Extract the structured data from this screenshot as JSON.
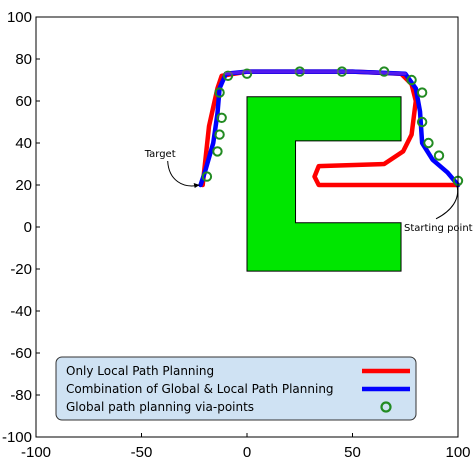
{
  "chart_data": {
    "type": "line",
    "title": "",
    "xlabel": "",
    "ylabel": "",
    "xlim": [
      -100,
      100
    ],
    "ylim": [
      -100,
      100
    ],
    "x_ticks": [
      -100,
      -50,
      0,
      50,
      100
    ],
    "y_ticks": [
      100,
      80,
      60,
      40,
      20,
      0,
      -20,
      -40,
      -60,
      -80,
      -100
    ],
    "grid": false,
    "legend_position": "bottom-left",
    "obstacle": {
      "color": "#00e600",
      "polygon": [
        [
          0,
          62
        ],
        [
          73,
          62
        ],
        [
          73,
          20
        ],
        [
          32,
          20
        ],
        [
          32,
          28
        ],
        [
          73,
          28
        ],
        [
          73,
          -21
        ],
        [
          0,
          -21
        ]
      ],
      "polygon_exact": [
        [
          0,
          62
        ],
        [
          73,
          62
        ],
        [
          73,
          41
        ],
        [
          23,
          41
        ],
        [
          23,
          2
        ],
        [
          73,
          2
        ],
        [
          73,
          -21
        ],
        [
          0,
          -21
        ]
      ]
    },
    "annotations": [
      {
        "text": "Target",
        "x": -21,
        "y": 20
      },
      {
        "text": "Starting point",
        "x": 100,
        "y": 22
      }
    ],
    "series": [
      {
        "name": "Only Local Path Planning",
        "color": "#ff0000",
        "points": [
          [
            100,
            20
          ],
          [
            34,
            20
          ],
          [
            32,
            24
          ],
          [
            34,
            29
          ],
          [
            65,
            30
          ],
          [
            74,
            36
          ],
          [
            78,
            44
          ],
          [
            80,
            60
          ],
          [
            78,
            68
          ],
          [
            73,
            73
          ],
          [
            50,
            74
          ],
          [
            0,
            74
          ],
          [
            -12,
            72
          ],
          [
            -14,
            66
          ],
          [
            -18,
            48
          ],
          [
            -21,
            20
          ]
        ]
      },
      {
        "name": "Combination of Global & Local Path Planning",
        "color": "#0000ff",
        "points": [
          [
            100,
            20
          ],
          [
            95,
            26
          ],
          [
            88,
            32
          ],
          [
            83,
            40
          ],
          [
            82,
            55
          ],
          [
            80,
            66
          ],
          [
            75,
            73
          ],
          [
            50,
            74
          ],
          [
            0,
            74
          ],
          [
            -10,
            73
          ],
          [
            -13,
            66
          ],
          [
            -14,
            54
          ],
          [
            -16,
            40
          ],
          [
            -20,
            26
          ],
          [
            -22,
            20
          ]
        ]
      },
      {
        "name": "Global path planning via-points",
        "color": "#228b22",
        "marker": "circle",
        "points": [
          [
            100,
            22
          ],
          [
            91,
            34
          ],
          [
            86,
            40
          ],
          [
            83,
            50
          ],
          [
            83,
            64
          ],
          [
            78,
            70
          ],
          [
            65,
            74
          ],
          [
            45,
            74
          ],
          [
            25,
            74
          ],
          [
            0,
            73
          ],
          [
            -9,
            72
          ],
          [
            -13,
            64
          ],
          [
            -12,
            52
          ],
          [
            -13,
            44
          ],
          [
            -14,
            36
          ],
          [
            -19,
            24
          ]
        ]
      }
    ]
  },
  "legend": {
    "items": [
      "Only Local Path Planning",
      "Combination of Global & Local Path Planning",
      "Global path planning via-points"
    ]
  }
}
